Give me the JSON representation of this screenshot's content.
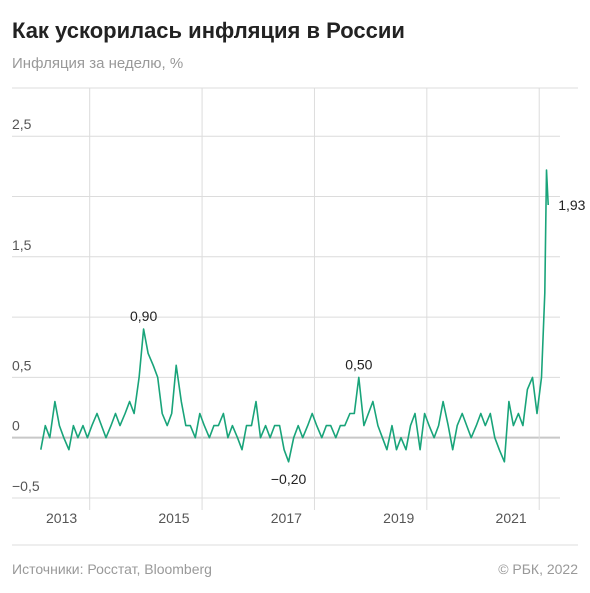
{
  "chart_data": {
    "type": "line",
    "title": "Как ускорилась инфляция в России",
    "subtitle": "Инфляция за неделю, %",
    "source": "Источники: Росстат, Bloomberg",
    "copyright": "© РБК, 2022",
    "color": "#19a47a",
    "grid": true,
    "xlim": [
      2013.08,
      2022.37
    ],
    "ylim": [
      -0.6,
      2.9
    ],
    "xticks": [
      2013,
      {
        "value": 2014,
        "label": null
      },
      2015,
      {
        "value": 2016,
        "label": null
      },
      2017,
      {
        "value": 2018,
        "label": null
      },
      2019,
      {
        "value": 2020,
        "label": null
      },
      2021,
      {
        "value": 2022,
        "label": null
      }
    ],
    "yticks": [
      {
        "value": -0.5,
        "label": "−0,5"
      },
      0,
      {
        "value": 0.5,
        "label": "0,5"
      },
      {
        "value": 1,
        "label": null
      },
      {
        "value": 1.5,
        "label": "1,5"
      },
      {
        "value": 2,
        "label": null
      },
      {
        "value": 2.5,
        "label": "2,5"
      }
    ],
    "x": [
      2013.13,
      2013.21,
      2013.29,
      2013.38,
      2013.46,
      2013.54,
      2013.63,
      2013.71,
      2013.79,
      2013.88,
      2013.96,
      2014.04,
      2014.13,
      2014.21,
      2014.29,
      2014.38,
      2014.46,
      2014.54,
      2014.63,
      2014.71,
      2014.79,
      2014.88,
      2014.96,
      2015.04,
      2015.13,
      2015.21,
      2015.29,
      2015.38,
      2015.46,
      2015.54,
      2015.63,
      2015.71,
      2015.79,
      2015.88,
      2015.96,
      2016.04,
      2016.13,
      2016.21,
      2016.29,
      2016.38,
      2016.46,
      2016.54,
      2016.63,
      2016.71,
      2016.79,
      2016.88,
      2016.96,
      2017.04,
      2017.13,
      2017.21,
      2017.29,
      2017.38,
      2017.46,
      2017.54,
      2017.63,
      2017.71,
      2017.79,
      2017.88,
      2017.96,
      2018.04,
      2018.13,
      2018.21,
      2018.29,
      2018.38,
      2018.46,
      2018.54,
      2018.63,
      2018.71,
      2018.79,
      2018.88,
      2018.96,
      2019.04,
      2019.13,
      2019.21,
      2019.29,
      2019.38,
      2019.46,
      2019.54,
      2019.63,
      2019.71,
      2019.79,
      2019.88,
      2019.96,
      2020.04,
      2020.13,
      2020.21,
      2020.29,
      2020.38,
      2020.46,
      2020.54,
      2020.63,
      2020.71,
      2020.79,
      2020.88,
      2020.96,
      2021.04,
      2021.13,
      2021.21,
      2021.29,
      2021.38,
      2021.46,
      2021.54,
      2021.63,
      2021.71,
      2021.79,
      2021.88,
      2021.96,
      2022.04,
      2022.1,
      2022.13,
      2022.16
    ],
    "values": [
      -0.1,
      0.1,
      0,
      0.3,
      0.1,
      0,
      -0.1,
      0.1,
      0,
      0.1,
      0,
      0.1,
      0.2,
      0.1,
      0,
      0.1,
      0.2,
      0.1,
      0.2,
      0.3,
      0.2,
      0.5,
      0.9,
      0.7,
      0.6,
      0.5,
      0.2,
      0.1,
      0.2,
      0.6,
      0.3,
      0.1,
      0.1,
      0,
      0.2,
      0.1,
      0,
      0.1,
      0.1,
      0.2,
      0,
      0.1,
      0,
      -0.1,
      0.1,
      0.1,
      0.3,
      0,
      0.1,
      0,
      0.1,
      0.1,
      -0.1,
      -0.2,
      0,
      0.1,
      0,
      0.1,
      0.2,
      0.1,
      0,
      0.1,
      0.1,
      0,
      0.1,
      0.1,
      0.2,
      0.2,
      0.5,
      0.1,
      0.2,
      0.3,
      0.1,
      0,
      -0.1,
      0.1,
      -0.1,
      0,
      -0.1,
      0.1,
      0.2,
      -0.1,
      0.2,
      0.1,
      0,
      0.1,
      0.3,
      0.1,
      -0.1,
      0.1,
      0.2,
      0.1,
      0,
      0.1,
      0.2,
      0.1,
      0.2,
      0,
      -0.1,
      -0.2,
      0.3,
      0.1,
      0.2,
      0.1,
      0.4,
      0.5,
      0.2,
      0.5,
      1.2,
      2.22,
      1.93
    ],
    "value_labels": [
      null,
      null,
      null,
      null,
      null,
      null,
      null,
      null,
      null,
      null,
      null,
      null,
      null,
      null,
      null,
      null,
      null,
      null,
      null,
      null,
      null,
      null,
      "0,90",
      null,
      null,
      null,
      null,
      null,
      null,
      null,
      null,
      null,
      null,
      null,
      null,
      null,
      null,
      null,
      null,
      null,
      null,
      null,
      null,
      null,
      null,
      null,
      null,
      null,
      null,
      null,
      null,
      null,
      null,
      "−0,20",
      null,
      null,
      null,
      null,
      null,
      null,
      null,
      null,
      null,
      null,
      null,
      null,
      null,
      null,
      "0,50",
      null,
      null,
      null,
      null,
      null,
      null,
      null,
      null,
      null,
      null,
      null,
      null,
      null,
      null,
      null,
      null,
      null,
      null,
      null,
      null,
      null,
      null,
      null,
      null,
      null,
      null,
      null,
      null,
      null,
      null,
      null,
      null,
      null,
      null,
      null,
      null,
      null,
      null,
      null,
      null,
      null,
      "1,93"
    ]
  }
}
